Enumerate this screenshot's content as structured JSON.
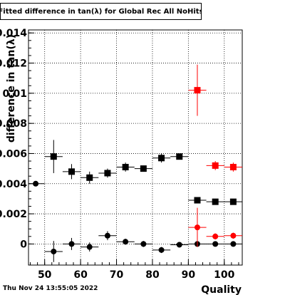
{
  "title": "Fitted difference in tan(λ) for Global Rec All NoHits",
  "footer_date": "Thu Nov 24 13:55:05 2022",
  "chart_data": {
    "type": "scatter",
    "title": "Fitted difference in tan(λ) for Global Rec All NoHits",
    "xlabel": "Quality",
    "ylabel": "difference in tan(λ)",
    "xlim": [
      45.5,
      105
    ],
    "ylim": [
      -0.0014,
      0.0142
    ],
    "x_ticks": [
      50,
      60,
      70,
      80,
      90,
      100
    ],
    "y_ticks": [
      0,
      0.002,
      0.004,
      0.006,
      0.008,
      0.01,
      0.012,
      0.014
    ],
    "y_tick_labels": [
      "0",
      "0.002",
      "0.004",
      "0.006",
      "0.008",
      "0.01",
      "0.012",
      "0.014"
    ],
    "grid": true,
    "series": [
      {
        "marker": "square",
        "color": "#000000",
        "points": [
          {
            "x": 52.5,
            "y": 0.0058,
            "xerr": 2.5,
            "yerr": 0.0011
          },
          {
            "x": 57.5,
            "y": 0.0048,
            "xerr": 2.5,
            "yerr": 0.0005
          },
          {
            "x": 62.5,
            "y": 0.0044,
            "xerr": 2.5,
            "yerr": 0.0004
          },
          {
            "x": 67.5,
            "y": 0.0047,
            "xerr": 2.5,
            "yerr": 0.0003
          },
          {
            "x": 72.5,
            "y": 0.0051,
            "xerr": 2.5,
            "yerr": 0.0003
          },
          {
            "x": 77.5,
            "y": 0.005,
            "xerr": 2.5,
            "yerr": 0.0002
          },
          {
            "x": 82.5,
            "y": 0.0057,
            "xerr": 2.5,
            "yerr": 0.0003
          },
          {
            "x": 87.5,
            "y": 0.0058,
            "xerr": 2.5,
            "yerr": 0.0001
          },
          {
            "x": 92.5,
            "y": 0.0029,
            "xerr": 2.5,
            "yerr": 0.0001
          },
          {
            "x": 97.5,
            "y": 0.0028,
            "xerr": 2.5,
            "yerr": 0.0001
          },
          {
            "x": 102.5,
            "y": 0.0028,
            "xerr": 2.5,
            "yerr": 0.0001
          }
        ]
      },
      {
        "marker": "circle",
        "color": "#000000",
        "points": [
          {
            "x": 47.5,
            "y": 0.004,
            "xerr": 2.5,
            "yerr": 0.0
          },
          {
            "x": 52.5,
            "y": -0.0005,
            "xerr": 2.5,
            "yerr": 0.0007
          },
          {
            "x": 57.5,
            "y": 0.0,
            "xerr": 2.5,
            "yerr": 0.0004
          },
          {
            "x": 62.5,
            "y": -0.0002,
            "xerr": 2.5,
            "yerr": 0.0003
          },
          {
            "x": 67.5,
            "y": 0.00055,
            "xerr": 2.5,
            "yerr": 0.0003
          },
          {
            "x": 72.5,
            "y": 0.00015,
            "xerr": 2.5,
            "yerr": 0.0002
          },
          {
            "x": 77.5,
            "y": 0.0,
            "xerr": 2.5,
            "yerr": 0.0002
          },
          {
            "x": 82.5,
            "y": -0.0004,
            "xerr": 2.5,
            "yerr": 0.0002
          },
          {
            "x": 87.5,
            "y": -5e-05,
            "xerr": 2.5,
            "yerr": 0.0001
          },
          {
            "x": 92.5,
            "y": 0.0,
            "xerr": 2.5,
            "yerr": 0.0001
          },
          {
            "x": 97.5,
            "y": 0.0,
            "xerr": 2.5,
            "yerr": 0.0001
          },
          {
            "x": 102.5,
            "y": 0.0,
            "xerr": 2.5,
            "yerr": 0.0001
          }
        ]
      },
      {
        "marker": "square",
        "color": "#ff0000",
        "points": [
          {
            "x": 92.5,
            "y": 0.0102,
            "xerr": 2.5,
            "yerr": 0.0017
          },
          {
            "x": 97.5,
            "y": 0.0052,
            "xerr": 2.5,
            "yerr": 0.0003
          },
          {
            "x": 102.5,
            "y": 0.0051,
            "xerr": 2.5,
            "yerr": 0.0003
          }
        ]
      },
      {
        "marker": "circle",
        "color": "#ff0000",
        "points": [
          {
            "x": 92.5,
            "y": 0.0011,
            "xerr": 2.5,
            "yerr": 0.0013
          },
          {
            "x": 97.5,
            "y": 0.0005,
            "xerr": 2.5,
            "yerr": 0.0002
          },
          {
            "x": 102.5,
            "y": 0.00055,
            "xerr": 2.5,
            "yerr": 0.0002
          }
        ]
      }
    ]
  }
}
